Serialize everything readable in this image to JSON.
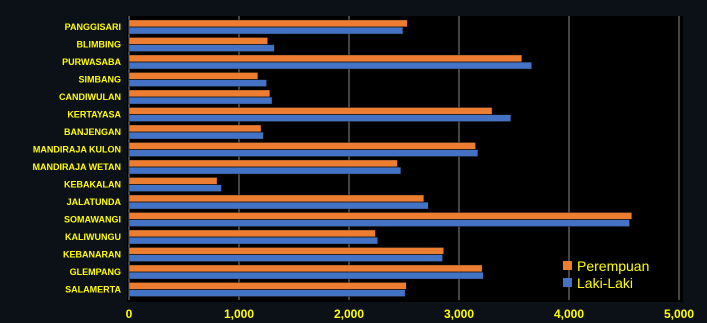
{
  "chart_data": {
    "type": "bar",
    "orientation": "horizontal",
    "categories": [
      "PANGGISARI",
      "BLIMBING",
      "PURWASABA",
      "SIMBANG",
      "CANDIWULAN",
      "KERTAYASA",
      "BANJENGAN",
      "MANDIRAJA KULON",
      "MANDIRAJA WETAN",
      "KEBAKALAN",
      "JALATUNDA",
      "SOMAWANGI",
      "KALIWUNGU",
      "KEBANARAN",
      "GLEMPANG",
      "SALAMERTA"
    ],
    "series": [
      {
        "name": "Perempuan",
        "color": "#ed7d31",
        "values": [
          2530,
          1260,
          3570,
          1170,
          1280,
          3300,
          1200,
          3150,
          2440,
          800,
          2680,
          4570,
          2240,
          2860,
          3210,
          2520
        ]
      },
      {
        "name": "Laki-Laki",
        "color": "#4472c4",
        "values": [
          2490,
          1320,
          3660,
          1250,
          1300,
          3470,
          1220,
          3170,
          2470,
          840,
          2720,
          4550,
          2260,
          2850,
          3220,
          2510
        ]
      }
    ],
    "xlim": [
      0,
      5000
    ],
    "ticks": [
      "0",
      "1,000",
      "2,000",
      "3,000",
      "4,000",
      "5,000"
    ],
    "grid": true,
    "legend_position": "bottom-right",
    "category_label_color": "#ffff00",
    "tick_label_color": "#ffff00",
    "legend_text_color": "#ffff00",
    "plot_background": "#000000"
  }
}
